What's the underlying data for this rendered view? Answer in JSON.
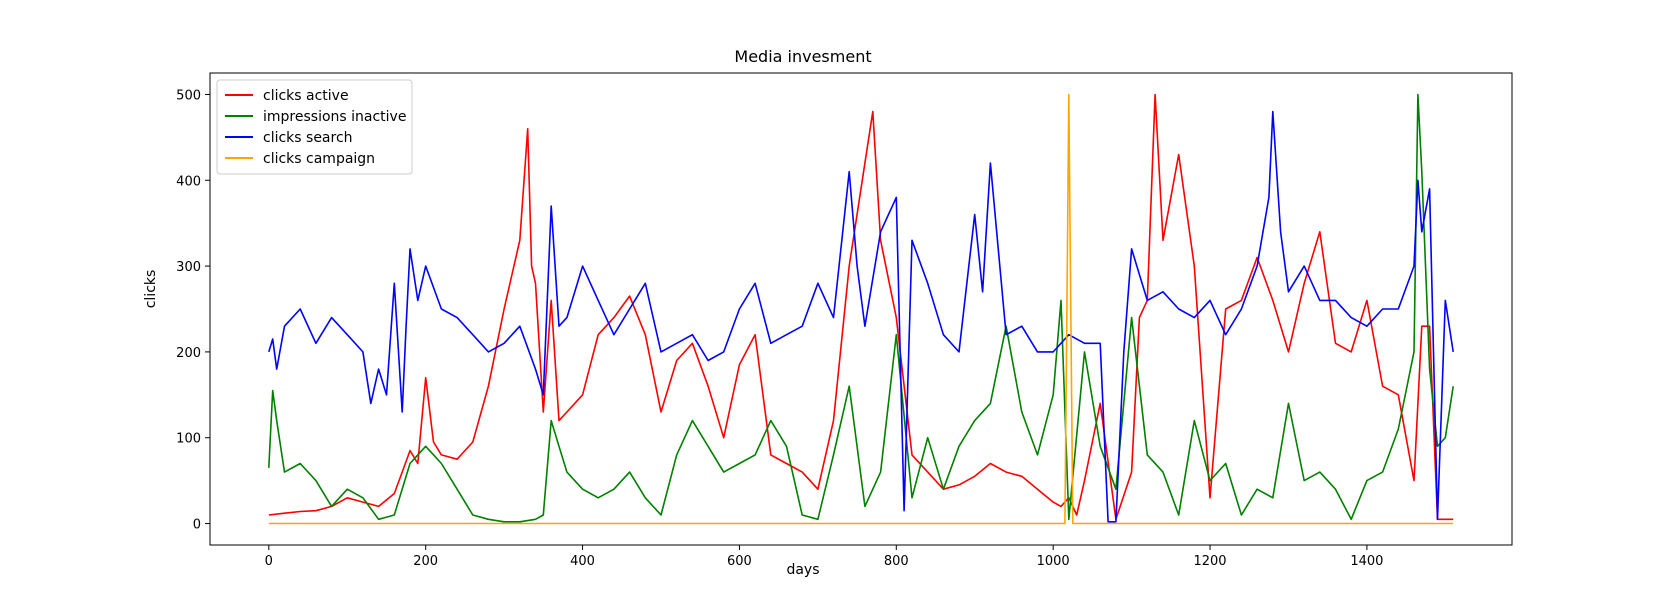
{
  "chart_data": {
    "type": "line",
    "title": "Media invesment",
    "xlabel": "days",
    "ylabel": "clicks",
    "xlim": [
      -75,
      1585
    ],
    "ylim": [
      -25,
      525
    ],
    "xticks": [
      0,
      200,
      400,
      600,
      800,
      1000,
      1200,
      1400
    ],
    "yticks": [
      0,
      100,
      200,
      300,
      400,
      500
    ],
    "grid": false,
    "legend_position": "top-left",
    "series": [
      {
        "name": "clicks active",
        "color": "#ff0000",
        "x": [
          0,
          20,
          40,
          60,
          80,
          100,
          120,
          140,
          160,
          170,
          180,
          190,
          200,
          210,
          220,
          240,
          260,
          280,
          300,
          320,
          330,
          335,
          340,
          350,
          360,
          370,
          380,
          400,
          420,
          440,
          460,
          480,
          500,
          520,
          540,
          560,
          580,
          600,
          620,
          640,
          660,
          680,
          700,
          720,
          740,
          760,
          770,
          780,
          800,
          820,
          840,
          860,
          880,
          900,
          920,
          940,
          960,
          980,
          1000,
          1010,
          1020,
          1030,
          1040,
          1060,
          1080,
          1100,
          1110,
          1120,
          1130,
          1140,
          1160,
          1180,
          1200,
          1220,
          1240,
          1260,
          1280,
          1300,
          1320,
          1340,
          1360,
          1380,
          1400,
          1420,
          1440,
          1460,
          1470,
          1480,
          1490,
          1500,
          1510
        ],
        "y": [
          10,
          12,
          14,
          15,
          20,
          30,
          25,
          20,
          35,
          60,
          85,
          70,
          170,
          95,
          80,
          75,
          95,
          160,
          250,
          330,
          460,
          300,
          280,
          130,
          260,
          120,
          130,
          150,
          220,
          240,
          265,
          220,
          130,
          190,
          210,
          160,
          100,
          185,
          220,
          80,
          70,
          60,
          40,
          120,
          300,
          420,
          480,
          330,
          240,
          80,
          60,
          40,
          45,
          55,
          70,
          60,
          55,
          40,
          25,
          20,
          30,
          10,
          50,
          140,
          5,
          60,
          240,
          260,
          500,
          330,
          430,
          300,
          30,
          250,
          260,
          310,
          260,
          200,
          280,
          340,
          210,
          200,
          260,
          160,
          150,
          50,
          230,
          230,
          5,
          5,
          5
        ]
      },
      {
        "name": "impressions inactive",
        "color": "#008000",
        "x": [
          0,
          5,
          10,
          20,
          40,
          60,
          80,
          100,
          120,
          140,
          160,
          180,
          200,
          220,
          240,
          260,
          280,
          300,
          320,
          340,
          350,
          360,
          370,
          380,
          400,
          420,
          440,
          460,
          480,
          500,
          520,
          540,
          560,
          580,
          600,
          620,
          640,
          660,
          680,
          700,
          720,
          740,
          760,
          780,
          800,
          820,
          840,
          860,
          880,
          900,
          920,
          940,
          960,
          980,
          1000,
          1010,
          1020,
          1040,
          1060,
          1080,
          1100,
          1120,
          1140,
          1160,
          1180,
          1200,
          1220,
          1240,
          1260,
          1280,
          1300,
          1320,
          1340,
          1360,
          1380,
          1400,
          1420,
          1440,
          1460,
          1465,
          1470,
          1480,
          1490,
          1500,
          1510
        ],
        "y": [
          65,
          155,
          120,
          60,
          70,
          50,
          20,
          40,
          30,
          5,
          10,
          70,
          90,
          70,
          40,
          10,
          5,
          2,
          2,
          5,
          10,
          120,
          90,
          60,
          40,
          30,
          40,
          60,
          30,
          10,
          80,
          120,
          90,
          60,
          70,
          80,
          120,
          90,
          10,
          5,
          80,
          160,
          20,
          60,
          220,
          30,
          100,
          40,
          90,
          120,
          140,
          230,
          130,
          80,
          150,
          260,
          5,
          200,
          90,
          40,
          240,
          80,
          60,
          10,
          120,
          50,
          70,
          10,
          40,
          30,
          140,
          50,
          60,
          40,
          5,
          50,
          60,
          110,
          200,
          500,
          410,
          180,
          90,
          100,
          160
        ]
      },
      {
        "name": "clicks search",
        "color": "#0000ff",
        "x": [
          0,
          5,
          10,
          20,
          40,
          60,
          80,
          100,
          120,
          130,
          140,
          150,
          160,
          170,
          175,
          180,
          190,
          200,
          220,
          240,
          260,
          280,
          300,
          320,
          340,
          350,
          360,
          370,
          380,
          400,
          420,
          440,
          460,
          480,
          500,
          520,
          540,
          560,
          580,
          600,
          620,
          640,
          660,
          680,
          700,
          720,
          740,
          750,
          760,
          780,
          800,
          810,
          820,
          840,
          860,
          880,
          900,
          910,
          920,
          940,
          960,
          980,
          1000,
          1020,
          1040,
          1060,
          1070,
          1080,
          1090,
          1100,
          1120,
          1140,
          1160,
          1180,
          1200,
          1220,
          1240,
          1260,
          1275,
          1280,
          1290,
          1300,
          1320,
          1340,
          1360,
          1380,
          1400,
          1420,
          1440,
          1460,
          1465,
          1470,
          1480,
          1490,
          1500,
          1510
        ],
        "y": [
          200,
          215,
          180,
          230,
          250,
          210,
          240,
          220,
          200,
          140,
          180,
          150,
          280,
          130,
          230,
          320,
          260,
          300,
          250,
          240,
          220,
          200,
          210,
          230,
          180,
          150,
          370,
          230,
          240,
          300,
          260,
          220,
          250,
          280,
          200,
          210,
          220,
          190,
          200,
          250,
          280,
          210,
          220,
          230,
          280,
          240,
          410,
          300,
          230,
          340,
          380,
          15,
          330,
          280,
          220,
          200,
          360,
          270,
          420,
          220,
          230,
          200,
          200,
          220,
          210,
          210,
          2,
          2,
          200,
          320,
          260,
          270,
          250,
          240,
          260,
          220,
          250,
          300,
          380,
          480,
          340,
          270,
          300,
          260,
          260,
          240,
          230,
          250,
          250,
          300,
          400,
          340,
          390,
          5,
          260,
          200
        ]
      },
      {
        "name": "clicks campaign",
        "color": "#ffa500",
        "x": [
          0,
          1015,
          1018,
          1020,
          1022,
          1025,
          1510
        ],
        "y": [
          0,
          0,
          300,
          500,
          300,
          0,
          0
        ]
      }
    ]
  }
}
